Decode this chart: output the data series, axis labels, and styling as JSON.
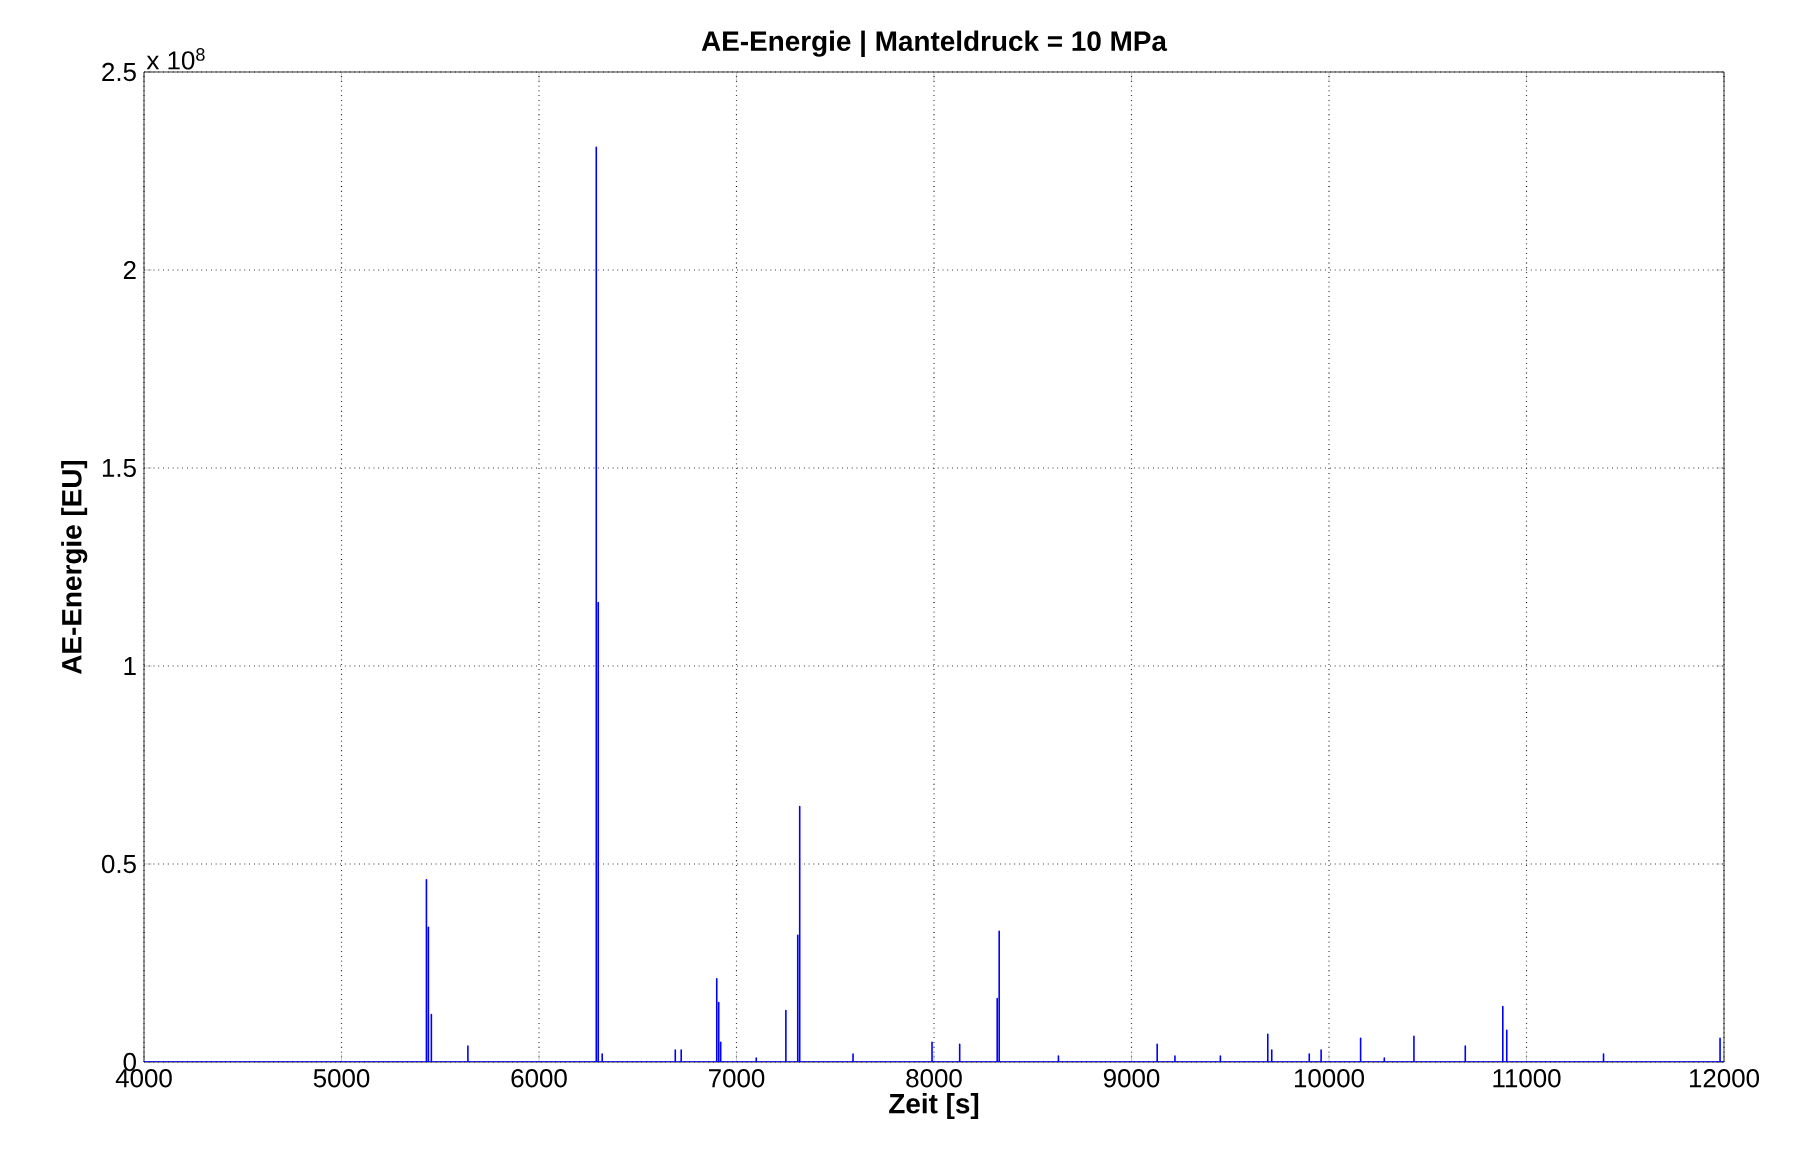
{
  "chart_data": {
    "type": "line",
    "title": "AE-Energie | Manteldruck = 10 MPa",
    "xlabel": "Zeit [s]",
    "ylabel": "AE-Energie [EU]",
    "annotations": [
      "x 10$^{8}$"
    ],
    "x": [
      4000,
      5430,
      5430,
      5430,
      5440,
      5440,
      5440,
      5455,
      5455,
      5455,
      5640,
      5640,
      5640,
      6290,
      6290,
      6290,
      6300,
      6300,
      6300,
      6320,
      6320,
      6320,
      6690,
      6690,
      6690,
      6720,
      6720,
      6720,
      6900,
      6900,
      6900,
      6910,
      6910,
      6910,
      6920,
      6920,
      6920,
      7100,
      7100,
      7100,
      7250,
      7250,
      7250,
      7310,
      7310,
      7310,
      7320,
      7320,
      7320,
      7590,
      7590,
      7590,
      7990,
      7990,
      7990,
      8130,
      8130,
      8130,
      8320,
      8320,
      8320,
      8330,
      8330,
      8330,
      8630,
      8630,
      8630,
      9130,
      9130,
      9130,
      9220,
      9220,
      9220,
      9450,
      9450,
      9450,
      9690,
      9690,
      9690,
      9710,
      9710,
      9710,
      9900,
      9900,
      9900,
      9960,
      9960,
      9960,
      10160,
      10160,
      10160,
      10280,
      10280,
      10280,
      10430,
      10430,
      10430,
      10690,
      10690,
      10690,
      10880,
      10880,
      10880,
      10900,
      10900,
      10900,
      11390,
      11390,
      11390,
      11980,
      11980,
      11980,
      12000
    ],
    "series": [
      {
        "color": "#0000ff",
        "values": [
          0,
          0,
          0.46,
          0,
          0,
          0.34,
          0,
          0,
          0.12,
          0,
          0,
          0.04,
          0,
          0,
          2.31,
          0,
          0,
          1.16,
          0,
          0,
          0.02,
          0,
          0,
          0.03,
          0,
          0,
          0.03,
          0,
          0,
          0.21,
          0,
          0,
          0.15,
          0,
          0,
          0.05,
          0,
          0,
          0.01,
          0,
          0,
          0.13,
          0,
          0,
          0.32,
          0,
          0,
          0.645,
          0,
          0,
          0.02,
          0,
          0,
          0.05,
          0,
          0,
          0.045,
          0,
          0,
          0.16,
          0,
          0,
          0.33,
          0,
          0,
          0.015,
          0,
          0,
          0.045,
          0,
          0,
          0.015,
          0,
          0,
          0.015,
          0,
          0,
          0.07,
          0,
          0,
          0.03,
          0,
          0,
          0.02,
          0,
          0,
          0.03,
          0,
          0,
          0.06,
          0,
          0,
          0.01,
          0,
          0,
          0.065,
          0,
          0,
          0.04,
          0,
          0,
          0.14,
          0,
          0,
          0.08,
          0,
          0,
          0.02,
          0,
          0,
          0.06,
          0,
          0
        ]
      }
    ],
    "xlim": [
      4000,
      12000
    ],
    "ylim": [
      0,
      2.5
    ],
    "xticks": [
      4000,
      5000,
      6000,
      7000,
      8000,
      9000,
      10000,
      11000,
      12000
    ],
    "yticks": [
      0,
      0.5,
      1,
      1.5,
      2,
      2.5
    ],
    "grid": true,
    "marker": "none",
    "line_style": "solid"
  }
}
